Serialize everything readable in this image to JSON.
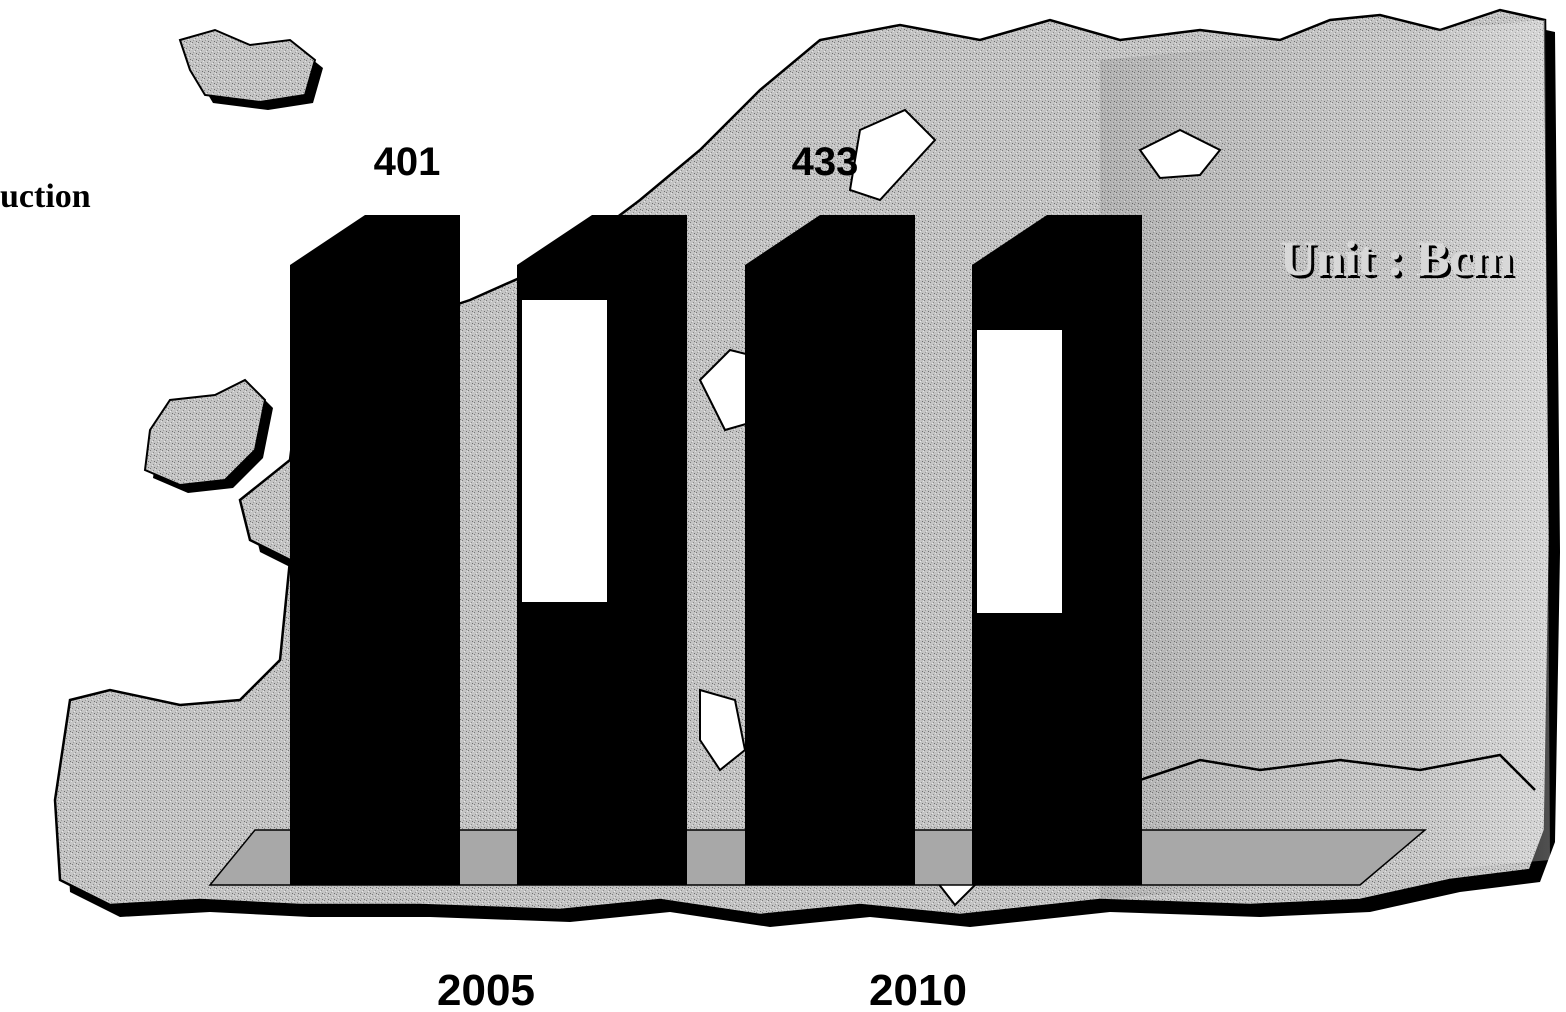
{
  "chart_data": {
    "type": "bar",
    "categories": [
      "2005",
      "2010"
    ],
    "series": [
      {
        "name": "",
        "values": [
          401,
          433
        ]
      },
      {
        "name": "",
        "values": [
          null,
          null
        ]
      }
    ],
    "data_labels": [
      "401",
      "433"
    ],
    "legend_fragment": "uction",
    "unit_label": "Unit : Bcm",
    "colors": {
      "bar": "#000000",
      "panel": "#ffffff",
      "map_land": "#bdbdbd",
      "map_shadow": "#000000",
      "floor": "#a8a8a8"
    }
  }
}
